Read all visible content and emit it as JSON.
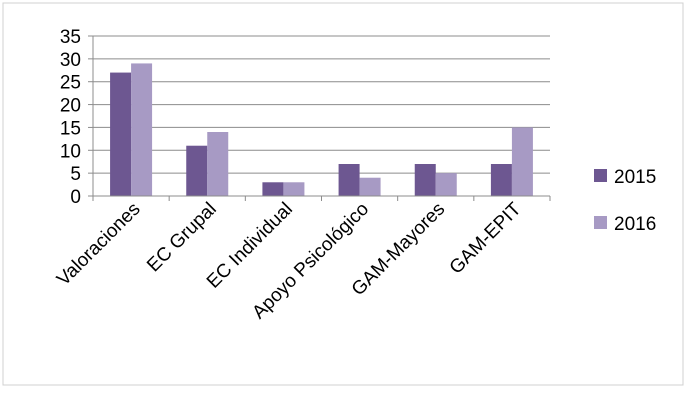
{
  "chart_data": {
    "type": "bar",
    "categories": [
      "Valoraciones",
      "EC Grupal",
      "EC Individual",
      "Apoyo Psicológico",
      "GAM-Mayores",
      "GAM-EPIT"
    ],
    "series": [
      {
        "name": "2015",
        "color": "#6d5791",
        "values": [
          27,
          11,
          3,
          7,
          7,
          7
        ]
      },
      {
        "name": "2016",
        "color": "#a79ac4",
        "values": [
          29,
          14,
          3,
          4,
          5,
          15
        ]
      }
    ],
    "yticks": [
      "0",
      "5",
      "10",
      "15",
      "20",
      "25",
      "30",
      "35"
    ],
    "ylim": [
      0,
      35
    ],
    "grid": true,
    "legend_position": "right"
  }
}
